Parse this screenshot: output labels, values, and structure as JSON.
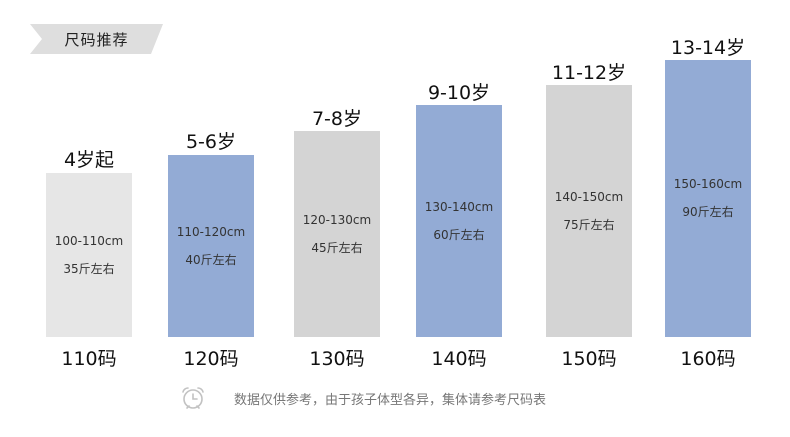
{
  "tag": {
    "label": "尺码推荐"
  },
  "colors": {
    "gray": "#e3e3e3",
    "gray_dark": "#d7d7d7",
    "blue": "#93abd5"
  },
  "columns": [
    {
      "age": "4岁起",
      "height": "100-110cm",
      "weight": "35斤左右",
      "size": "110码",
      "color": "#e6e6e6"
    },
    {
      "age": "5-6岁",
      "height": "110-120cm",
      "weight": "40斤左右",
      "size": "120码",
      "color": "#93abd5"
    },
    {
      "age": "7-8岁",
      "height": "120-130cm",
      "weight": "45斤左右",
      "size": "130码",
      "color": "#d4d4d4"
    },
    {
      "age": "9-10岁",
      "height": "130-140cm",
      "weight": "60斤左右",
      "size": "140码",
      "color": "#93abd5"
    },
    {
      "age": "11-12岁",
      "height": "140-150cm",
      "weight": "75斤左右",
      "size": "150码",
      "color": "#d4d4d4"
    },
    {
      "age": "13-14岁",
      "height": "150-160cm",
      "weight": "90斤左右",
      "size": "160码",
      "color": "#93abd5"
    }
  ],
  "note": {
    "text": "数据仅供参考，由于孩子体型各异，集体请参考尺码表",
    "icon": "alarm-clock-icon"
  }
}
